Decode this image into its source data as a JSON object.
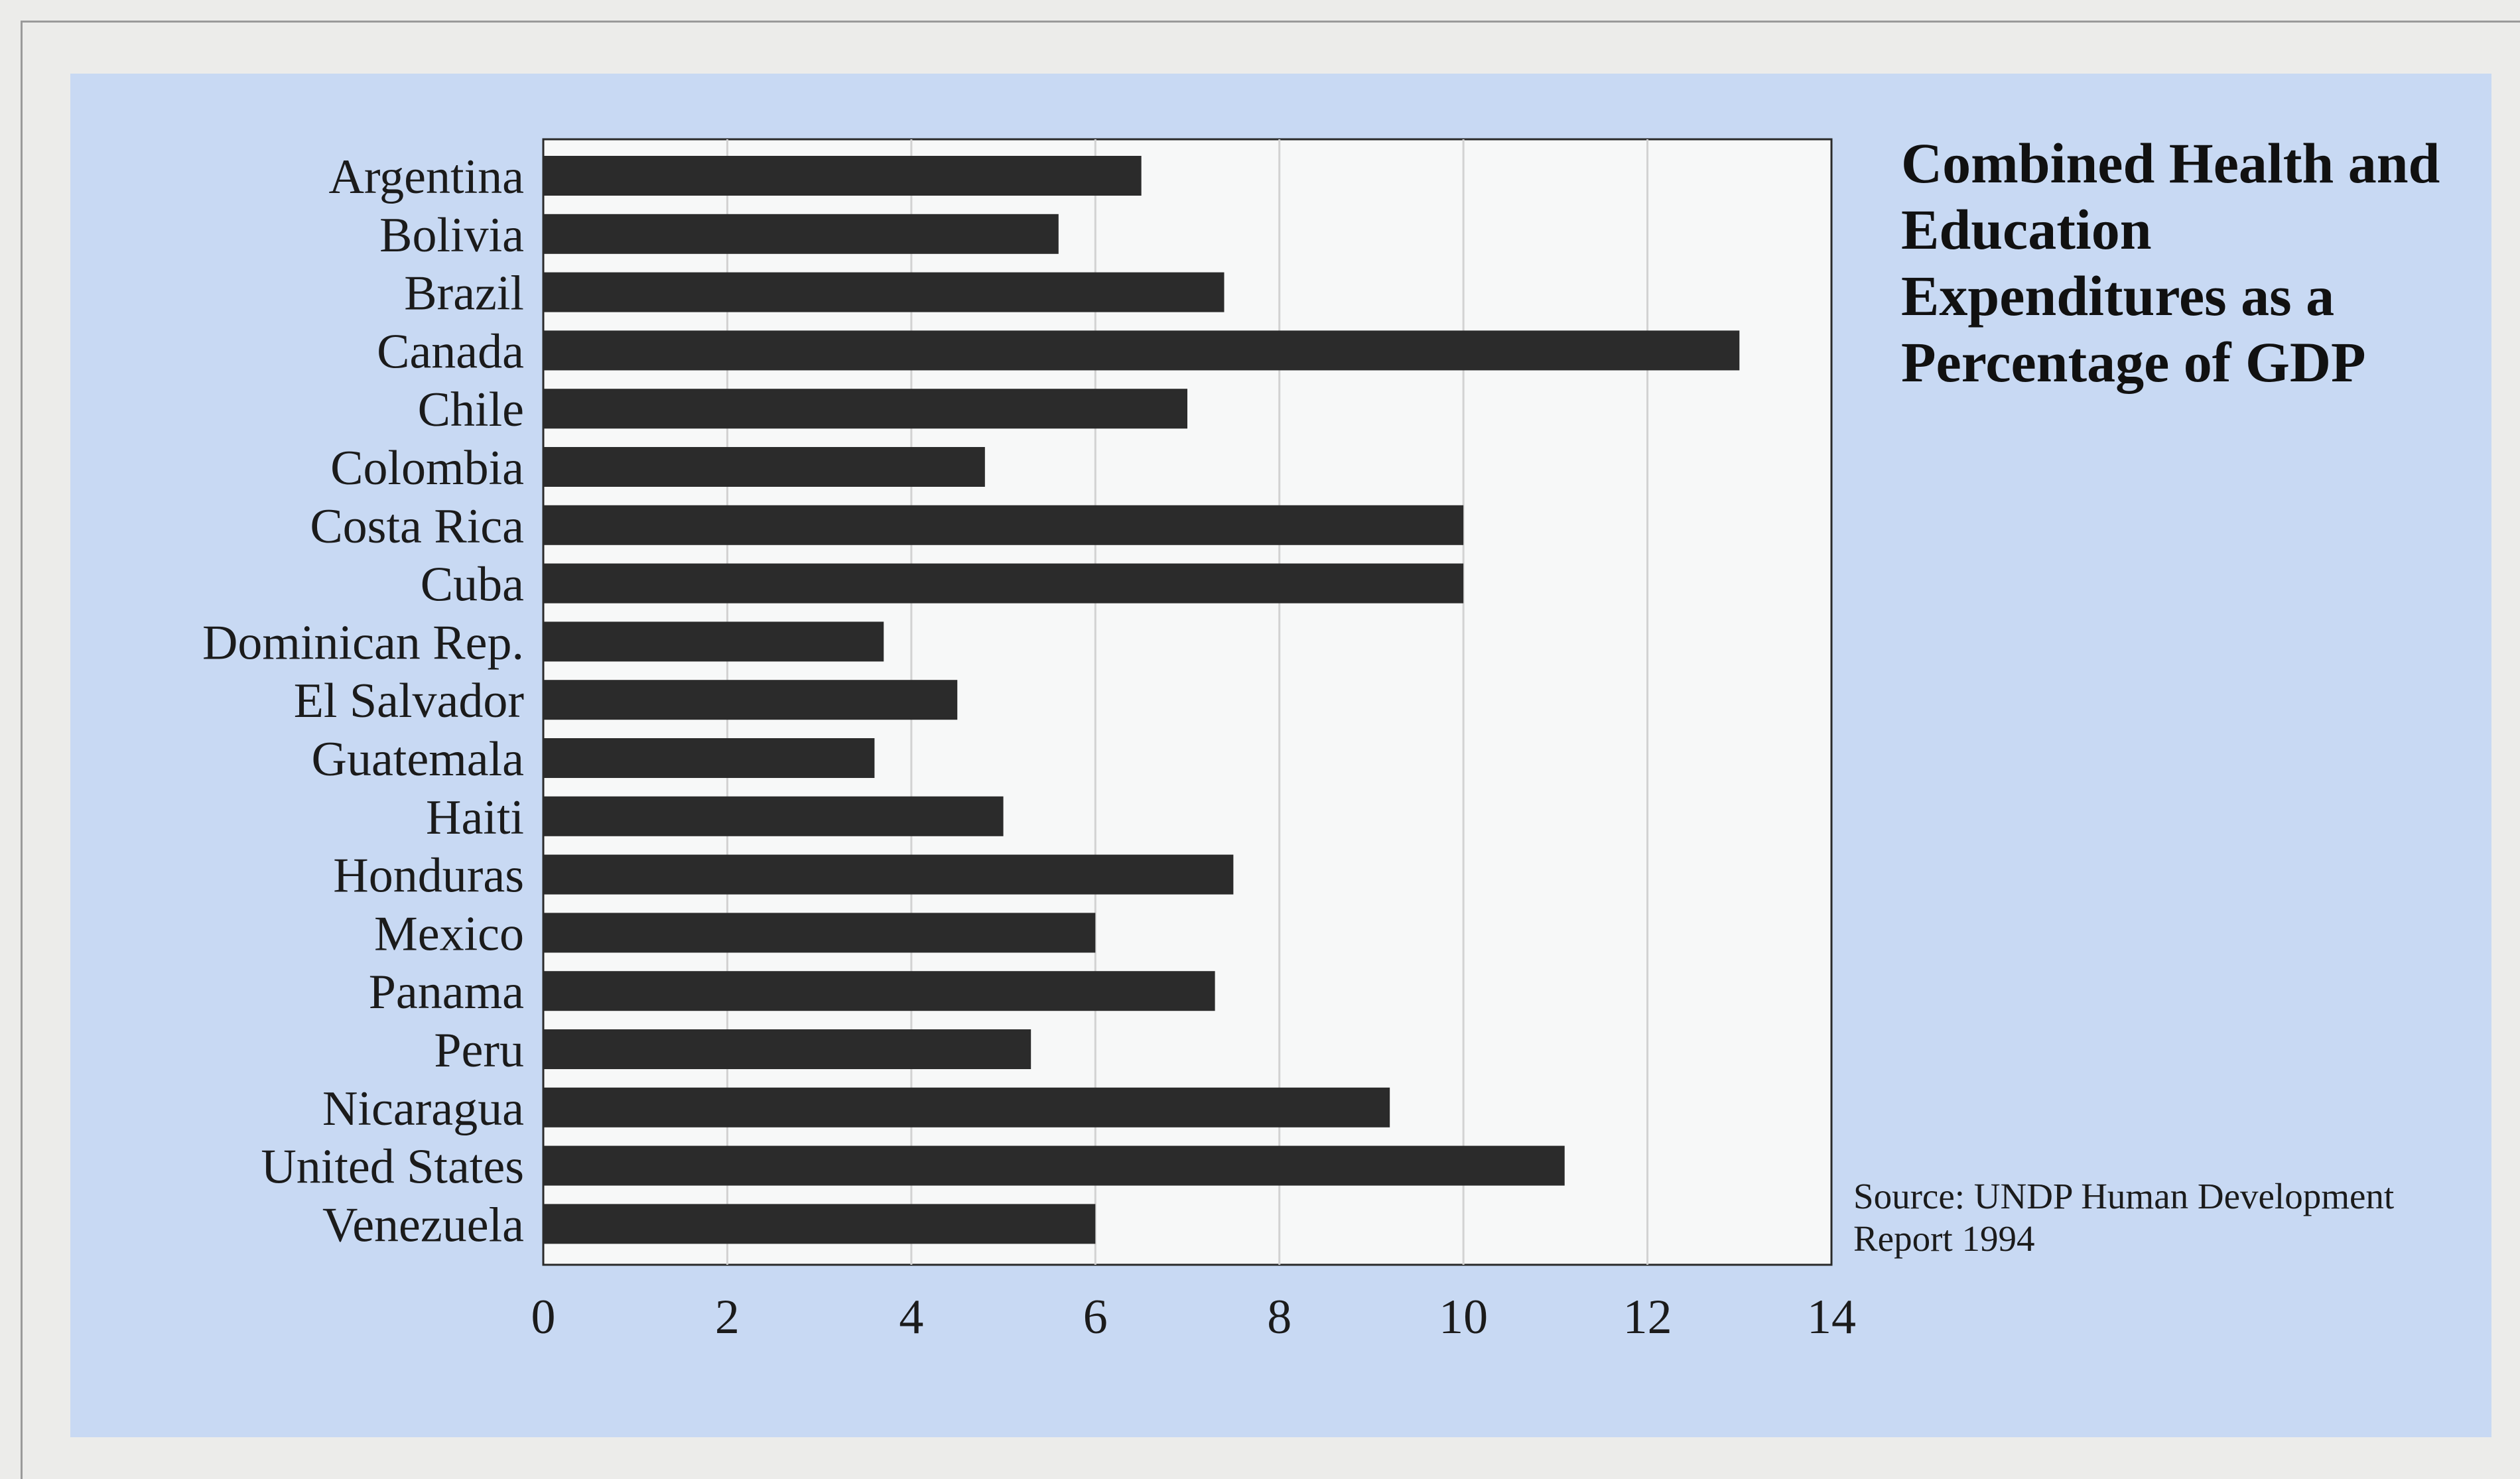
{
  "colors": {
    "page_background": "#ececea",
    "panel_background": "#c8d9f3",
    "plot_background": "#f7f8f8",
    "bar": "#2b2b2b",
    "gridline": "#d2d2d2"
  },
  "chart_data": {
    "type": "bar",
    "orientation": "horizontal",
    "title": "Combined Health and Education Expenditures as a Percentage of GDP",
    "source": "Source:  UNDP Human Development Report 1994",
    "categories": [
      "Argentina",
      "Bolivia",
      "Brazil",
      "Canada",
      "Chile",
      "Colombia",
      "Costa Rica",
      "Cuba",
      "Dominican Rep.",
      "El Salvador",
      "Guatemala",
      "Haiti",
      "Honduras",
      "Mexico",
      "Panama",
      "Peru",
      "Nicaragua",
      "United States",
      "Venezuela"
    ],
    "values": [
      6.5,
      5.6,
      7.4,
      13.0,
      7.0,
      4.8,
      10.0,
      10.0,
      3.7,
      4.5,
      3.6,
      5.0,
      7.5,
      6.0,
      7.3,
      5.3,
      9.2,
      11.1,
      6.0
    ],
    "xlim": [
      0,
      14
    ],
    "x_ticks": [
      0,
      2,
      4,
      6,
      8,
      10,
      12,
      14
    ],
    "xlabel": "",
    "ylabel": "",
    "grid": "vertical",
    "legend": "none"
  }
}
